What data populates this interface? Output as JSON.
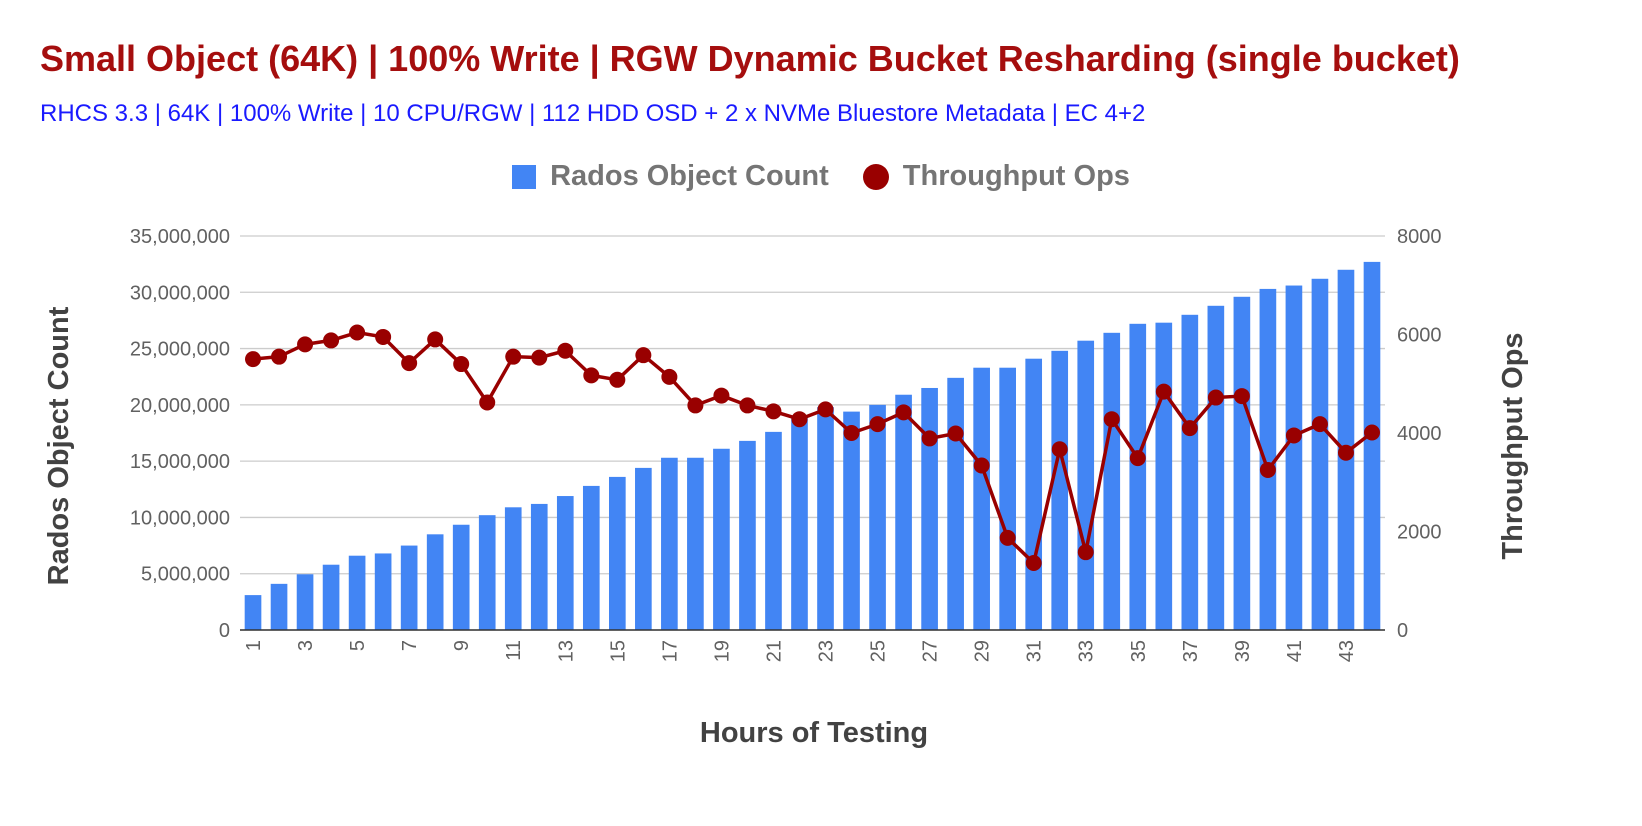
{
  "title": "Small Object (64K) | 100% Write | RGW Dynamic Bucket Resharding (single bucket)",
  "subtitle": "RHCS 3.3 | 64K | 100% Write | 10 CPU/RGW | 112 HDD OSD + 2 x NVMe Bluestore Metadata | EC 4+2",
  "legend": {
    "bars": "Rados Object Count",
    "line": "Throughput Ops"
  },
  "colors": {
    "bar": "#4285f4",
    "line": "#990000",
    "title": "#a50e0e",
    "subtitle": "#1a1aff"
  },
  "chart_data": {
    "type": "bar",
    "xlabel": "Hours of Testing",
    "ylabel": "Rados Object Count",
    "y2label": "Throughput Ops",
    "ylim": [
      0,
      35000000
    ],
    "y2lim": [
      0,
      8000
    ],
    "yticks": [
      "0",
      "5,000,000",
      "10,000,000",
      "15,000,000",
      "20,000,000",
      "25,000,000",
      "30,000,000",
      "35,000,000"
    ],
    "y2ticks": [
      "0",
      "2000",
      "4000",
      "6000",
      "8000"
    ],
    "x": [
      1,
      2,
      3,
      4,
      5,
      6,
      7,
      8,
      9,
      10,
      11,
      12,
      13,
      14,
      15,
      16,
      17,
      18,
      19,
      20,
      21,
      22,
      23,
      24,
      25,
      26,
      27,
      28,
      29,
      30,
      31,
      32,
      33,
      34,
      35,
      36,
      37,
      38,
      39,
      40,
      41,
      42,
      43,
      44
    ],
    "xtick_labels": [
      "1",
      "3",
      "5",
      "7",
      "9",
      "11",
      "13",
      "15",
      "17",
      "19",
      "21",
      "23",
      "25",
      "27",
      "29",
      "31",
      "33",
      "35",
      "37",
      "39",
      "41",
      "43"
    ],
    "grid": true,
    "legend_position": "top",
    "series": [
      {
        "name": "Rados Object Count",
        "type": "bar",
        "axis": "left",
        "values": [
          3100000,
          4100000,
          4950000,
          5800000,
          6600000,
          6800000,
          7500000,
          8500000,
          9350000,
          10200000,
          10900000,
          11200000,
          11900000,
          12800000,
          13600000,
          14400000,
          15300000,
          15300000,
          16100000,
          16800000,
          17600000,
          18900000,
          19800000,
          19400000,
          20000000,
          20900000,
          21500000,
          22400000,
          23300000,
          23300000,
          24100000,
          24800000,
          25700000,
          26400000,
          27200000,
          27300000,
          28000000,
          28800000,
          29600000,
          30300000,
          30600000,
          31200000,
          32000000,
          32700000
        ]
      },
      {
        "name": "Throughput Ops",
        "type": "line",
        "axis": "right",
        "values": [
          5500,
          5550,
          5800,
          5880,
          6040,
          5950,
          5420,
          5900,
          5400,
          4620,
          5550,
          5530,
          5670,
          5170,
          5080,
          5580,
          5140,
          4560,
          4760,
          4560,
          4440,
          4280,
          4480,
          4000,
          4180,
          4420,
          3890,
          3990,
          3340,
          1870,
          1360,
          3670,
          1580,
          4280,
          3490,
          4840,
          4100,
          4720,
          4750,
          3250,
          3950,
          4180,
          3600,
          4010
        ]
      }
    ]
  }
}
